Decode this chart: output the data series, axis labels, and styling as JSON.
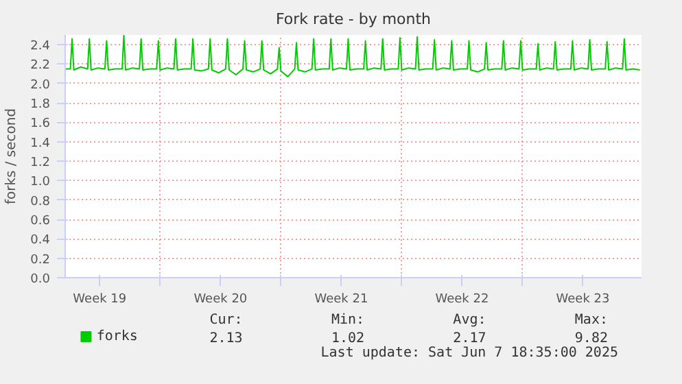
{
  "chart_data": {
    "type": "line",
    "title": "Fork rate - by month",
    "ylabel": "forks / second",
    "x": [
      "2025-05-06T12:00",
      "2025-05-06T19:12",
      "2025-05-06T21:36",
      "2025-05-07T00:00",
      "2025-05-07T09:36",
      "2025-05-07T19:12",
      "2025-05-07T21:36",
      "2025-05-08T00:00",
      "2025-05-08T09:36",
      "2025-05-08T19:12",
      "2025-05-08T21:36",
      "2025-05-09T00:00",
      "2025-05-09T09:36",
      "2025-05-09T19:12",
      "2025-05-09T21:36",
      "2025-05-10T00:00",
      "2025-05-10T09:36",
      "2025-05-10T19:12",
      "2025-05-10T21:36",
      "2025-05-11T00:00",
      "2025-05-11T09:36",
      "2025-05-11T19:12",
      "2025-05-11T21:36",
      "2025-05-12T00:00",
      "2025-05-12T09:36",
      "2025-05-12T19:12",
      "2025-05-12T21:36",
      "2025-05-13T00:00",
      "2025-05-13T09:36",
      "2025-05-13T19:12",
      "2025-05-13T21:36",
      "2025-05-14T00:00",
      "2025-05-14T09:36",
      "2025-05-14T19:12",
      "2025-05-14T21:36",
      "2025-05-15T00:00",
      "2025-05-15T09:36",
      "2025-05-15T19:12",
      "2025-05-15T21:36",
      "2025-05-16T00:00",
      "2025-05-16T09:36",
      "2025-05-16T19:12",
      "2025-05-16T21:36",
      "2025-05-17T00:00",
      "2025-05-17T09:36",
      "2025-05-17T19:12",
      "2025-05-17T21:36",
      "2025-05-18T00:00",
      "2025-05-18T09:36",
      "2025-05-18T19:12",
      "2025-05-18T21:36",
      "2025-05-19T00:00",
      "2025-05-19T09:36",
      "2025-05-19T19:12",
      "2025-05-19T21:36",
      "2025-05-20T00:00",
      "2025-05-20T09:36",
      "2025-05-20T19:12",
      "2025-05-20T21:36",
      "2025-05-21T00:00",
      "2025-05-21T09:36",
      "2025-05-21T19:12",
      "2025-05-21T21:36",
      "2025-05-22T00:00",
      "2025-05-22T09:36",
      "2025-05-22T19:12",
      "2025-05-22T21:36",
      "2025-05-23T00:00",
      "2025-05-23T09:36",
      "2025-05-23T19:12",
      "2025-05-23T21:36",
      "2025-05-24T00:00",
      "2025-05-24T09:36",
      "2025-05-24T19:12",
      "2025-05-24T21:36",
      "2025-05-25T00:00",
      "2025-05-25T09:36",
      "2025-05-25T19:12",
      "2025-05-25T21:36",
      "2025-05-26T00:00",
      "2025-05-26T09:36",
      "2025-05-26T19:12",
      "2025-05-26T21:36",
      "2025-05-27T00:00",
      "2025-05-27T09:36",
      "2025-05-27T19:12",
      "2025-05-27T21:36",
      "2025-05-28T00:00",
      "2025-05-28T09:36",
      "2025-05-28T19:12",
      "2025-05-28T21:36",
      "2025-05-29T00:00",
      "2025-05-29T09:36",
      "2025-05-29T19:12",
      "2025-05-29T21:36",
      "2025-05-30T00:00",
      "2025-05-30T09:36",
      "2025-05-30T19:12",
      "2025-05-30T21:36",
      "2025-05-31T00:00",
      "2025-05-31T09:36",
      "2025-05-31T19:12",
      "2025-05-31T21:36",
      "2025-06-01T00:00",
      "2025-06-01T09:36",
      "2025-06-01T19:12",
      "2025-06-01T21:36",
      "2025-06-02T00:00",
      "2025-06-02T09:36",
      "2025-06-02T19:12",
      "2025-06-02T21:36",
      "2025-06-03T00:00",
      "2025-06-03T09:36",
      "2025-06-03T19:12",
      "2025-06-03T21:36",
      "2025-06-04T00:00",
      "2025-06-04T09:36",
      "2025-06-04T19:12",
      "2025-06-04T21:36",
      "2025-06-05T00:00",
      "2025-06-05T09:36",
      "2025-06-05T19:12",
      "2025-06-05T21:36",
      "2025-06-06T00:00",
      "2025-06-06T09:36",
      "2025-06-06T19:12",
      "2025-06-06T21:36",
      "2025-06-07T00:00",
      "2025-06-07T09:36",
      "2025-06-07T19:12",
      "2025-06-07T21:36",
      "2025-06-08T00:00",
      "2025-06-08T09:36",
      "2025-06-08T19:12"
    ],
    "series": [
      {
        "name": "forks",
        "color": "#00cc00",
        "values": [
          2.15,
          2.15,
          2.46,
          2.14,
          2.17,
          2.15,
          2.46,
          2.14,
          2.16,
          2.15,
          2.44,
          2.14,
          2.15,
          2.15,
          2.5,
          2.14,
          2.16,
          2.15,
          2.46,
          2.14,
          2.15,
          2.15,
          2.44,
          2.14,
          2.16,
          2.15,
          2.46,
          2.14,
          2.15,
          2.15,
          2.46,
          2.14,
          2.13,
          2.15,
          2.46,
          2.14,
          2.11,
          2.15,
          2.46,
          2.14,
          2.09,
          2.15,
          2.44,
          2.14,
          2.12,
          2.15,
          2.44,
          2.14,
          2.1,
          2.15,
          2.37,
          2.13,
          2.07,
          2.15,
          2.42,
          2.14,
          2.12,
          2.15,
          2.46,
          2.14,
          2.15,
          2.15,
          2.46,
          2.14,
          2.16,
          2.15,
          2.46,
          2.14,
          2.15,
          2.15,
          2.44,
          2.14,
          2.16,
          2.15,
          2.46,
          2.14,
          2.15,
          2.15,
          2.47,
          2.14,
          2.16,
          2.15,
          2.48,
          2.14,
          2.15,
          2.15,
          2.45,
          2.14,
          2.16,
          2.15,
          2.44,
          2.14,
          2.15,
          2.15,
          2.44,
          2.14,
          2.12,
          2.15,
          2.42,
          2.14,
          2.15,
          2.15,
          2.44,
          2.14,
          2.16,
          2.15,
          2.44,
          2.14,
          2.15,
          2.15,
          2.41,
          2.14,
          2.16,
          2.15,
          2.43,
          2.14,
          2.15,
          2.15,
          2.44,
          2.14,
          2.16,
          2.15,
          2.45,
          2.14,
          2.15,
          2.15,
          2.43,
          2.14,
          2.16,
          2.15,
          2.46,
          2.14,
          2.15,
          2.14
        ]
      }
    ],
    "xlim": [
      "2025-05-06T12:00",
      "2025-06-08T21:36"
    ],
    "ylim": [
      0,
      2.5
    ],
    "xticks": [
      {
        "value": "2025-05-08T12:00",
        "label": "Week 19"
      },
      {
        "value": "2025-05-12",
        "label": null
      },
      {
        "value": "2025-05-15T12:00",
        "label": "Week 20"
      },
      {
        "value": "2025-05-19",
        "label": null
      },
      {
        "value": "2025-05-22T12:00",
        "label": "Week 21"
      },
      {
        "value": "2025-05-26",
        "label": null
      },
      {
        "value": "2025-05-29T12:00",
        "label": "Week 22"
      },
      {
        "value": "2025-06-02",
        "label": null
      },
      {
        "value": "2025-06-05T12:00",
        "label": "Week 23"
      }
    ],
    "yticks": [
      {
        "value": 0,
        "label": "0.0"
      },
      0.2,
      0.4,
      0.6,
      0.8,
      {
        "value": 1,
        "label": "1.0"
      },
      1.2,
      1.4,
      1.6,
      1.8,
      {
        "value": 2,
        "label": "2.0"
      },
      2.2,
      2.4
    ],
    "grid": true,
    "legend": "bottom",
    "marker": "none",
    "line_style": "solid",
    "annotations": [
      "Cur:",
      "Min:",
      "Avg:",
      "Max:",
      "2.13",
      "1.02",
      "2.17",
      "9.82",
      "Last update: Sat Jun  7 18:35:00 2025"
    ]
  }
}
